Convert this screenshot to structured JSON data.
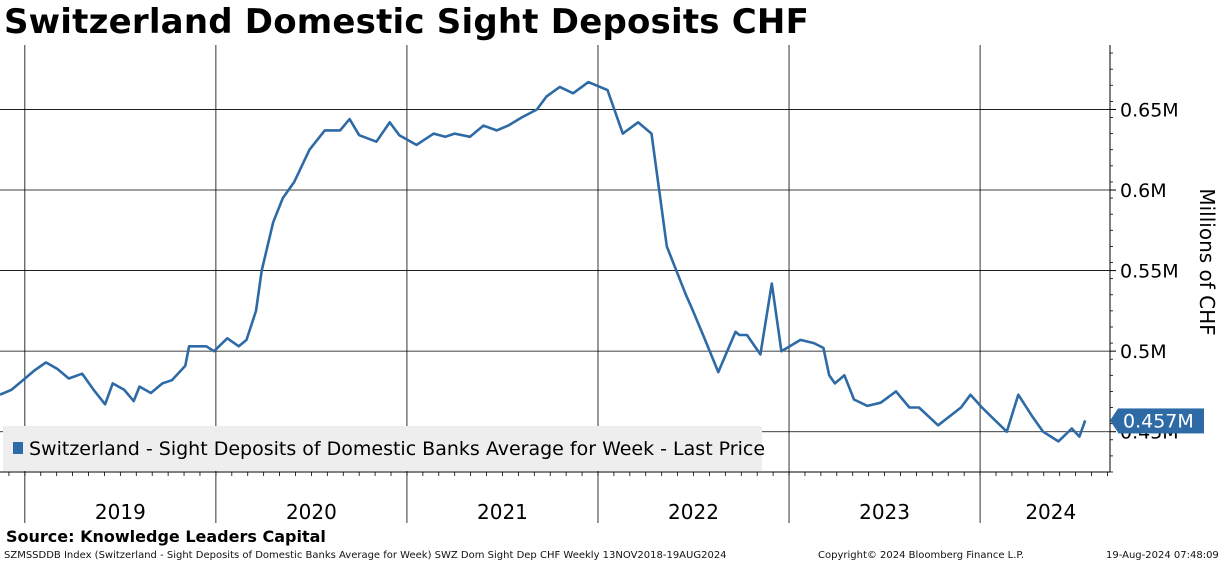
{
  "title": "Switzerland Domestic Sight Deposits CHF",
  "source": "Source: Knowledge Leaders Capital",
  "footer": {
    "left": "SZMSSDDB Index (Switzerland - Sight Deposits of Domestic Banks Average for Week) SWZ Dom Sight Dep CHF  Weekly 13NOV2018-19AUG2024",
    "middle": "Copyright© 2024 Bloomberg Finance L.P.",
    "right": "19-Aug-2024 07:48:09"
  },
  "colors": {
    "series": "#2e6aa5",
    "grid": "#000000",
    "legend_bg": "#eeeeee"
  },
  "chart_data": {
    "type": "line",
    "title": "Switzerland Domestic Sight Deposits CHF",
    "ylabel": "Millions of CHF",
    "y_tick_labels": [
      "0.45M",
      "0.5M",
      "0.55M",
      "0.6M",
      "0.65M"
    ],
    "y_ticks": [
      0.45,
      0.5,
      0.55,
      0.6,
      0.65
    ],
    "ylim": [
      0.425,
      0.69
    ],
    "xlim": [
      2018.87,
      2024.68
    ],
    "year_labels": [
      "2019",
      "2020",
      "2021",
      "2022",
      "2023",
      "2024"
    ],
    "year_label_x": [
      2019.5,
      2020.5,
      2021.5,
      2022.5,
      2023.5,
      2024.37
    ],
    "year_dividers": [
      2019,
      2020,
      2021,
      2022,
      2023,
      2024
    ],
    "last_value_label": "0.457M",
    "last_value": 0.457,
    "grid": true,
    "legend_position": "bottom-left",
    "series": [
      {
        "name": "Switzerland - Sight Deposits of Domestic Banks Average for Week - Last Price",
        "x": [
          2018.87,
          2018.93,
          2018.99,
          2019.05,
          2019.11,
          2019.17,
          2019.23,
          2019.3,
          2019.36,
          2019.42,
          2019.46,
          2019.52,
          2019.57,
          2019.6,
          2019.66,
          2019.72,
          2019.77,
          2019.84,
          2019.86,
          2019.95,
          2019.99,
          2020.06,
          2020.12,
          2020.16,
          2020.21,
          2020.24,
          2020.3,
          2020.35,
          2020.41,
          2020.49,
          2020.57,
          2020.65,
          2020.7,
          2020.75,
          2020.84,
          2020.91,
          2020.96,
          2021.05,
          2021.14,
          2021.2,
          2021.25,
          2021.33,
          2021.4,
          2021.47,
          2021.53,
          2021.6,
          2021.68,
          2021.73,
          2021.8,
          2021.87,
          2021.95,
          2021.99,
          2022.05,
          2022.13,
          2022.21,
          2022.28,
          2022.36,
          2022.46,
          2022.49,
          2022.55,
          2022.63,
          2022.72,
          2022.74,
          2022.78,
          2022.85,
          2022.91,
          2022.96,
          2023.06,
          2023.13,
          2023.18,
          2023.21,
          2023.24,
          2023.29,
          2023.34,
          2023.41,
          2023.48,
          2023.56,
          2023.63,
          2023.68,
          2023.78,
          2023.9,
          2023.95,
          2024.01,
          2024.07,
          2024.14,
          2024.2,
          2024.27,
          2024.33,
          2024.41,
          2024.48,
          2024.52,
          2024.55
        ],
        "y": [
          0.473,
          0.476,
          0.482,
          0.488,
          0.493,
          0.489,
          0.483,
          0.486,
          0.476,
          0.467,
          0.48,
          0.476,
          0.469,
          0.478,
          0.474,
          0.48,
          0.482,
          0.491,
          0.503,
          0.503,
          0.5,
          0.508,
          0.503,
          0.507,
          0.525,
          0.55,
          0.58,
          0.595,
          0.605,
          0.625,
          0.637,
          0.637,
          0.644,
          0.634,
          0.63,
          0.642,
          0.634,
          0.628,
          0.635,
          0.633,
          0.635,
          0.633,
          0.64,
          0.637,
          0.64,
          0.645,
          0.65,
          0.658,
          0.664,
          0.66,
          0.667,
          0.665,
          0.662,
          0.635,
          0.642,
          0.635,
          0.565,
          0.535,
          0.527,
          0.51,
          0.487,
          0.512,
          0.51,
          0.51,
          0.498,
          0.542,
          0.5,
          0.507,
          0.505,
          0.502,
          0.485,
          0.48,
          0.485,
          0.47,
          0.466,
          0.468,
          0.475,
          0.465,
          0.465,
          0.454,
          0.465,
          0.473,
          0.465,
          0.458,
          0.45,
          0.473,
          0.46,
          0.45,
          0.444,
          0.452,
          0.447,
          0.457
        ]
      }
    ]
  }
}
